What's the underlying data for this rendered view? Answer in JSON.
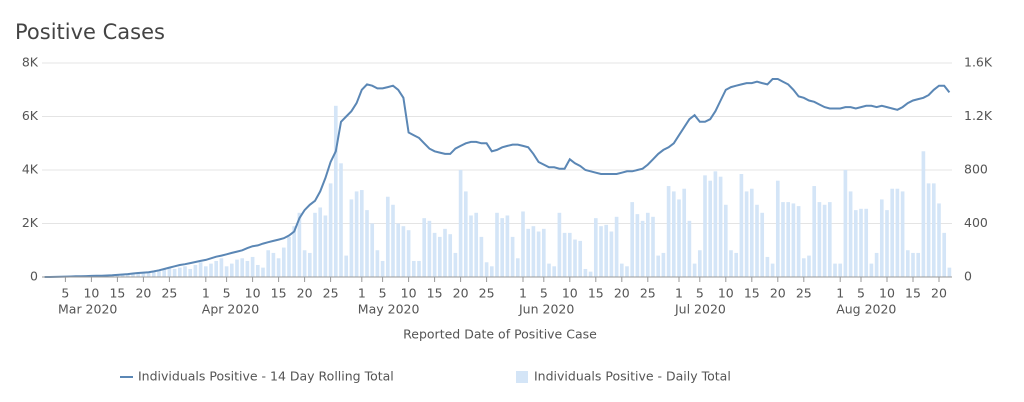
{
  "chart_data": {
    "type": "bar-line",
    "title": "Positive Cases",
    "xlabel": "Reported Date of Positive Case",
    "x": [
      "2020-03-01",
      "2020-03-02",
      "2020-03-03",
      "2020-03-04",
      "2020-03-05",
      "2020-03-06",
      "2020-03-07",
      "2020-03-08",
      "2020-03-09",
      "2020-03-10",
      "2020-03-11",
      "2020-03-12",
      "2020-03-13",
      "2020-03-14",
      "2020-03-15",
      "2020-03-16",
      "2020-03-17",
      "2020-03-18",
      "2020-03-19",
      "2020-03-20",
      "2020-03-21",
      "2020-03-22",
      "2020-03-23",
      "2020-03-24",
      "2020-03-25",
      "2020-03-26",
      "2020-03-27",
      "2020-03-28",
      "2020-03-29",
      "2020-03-30",
      "2020-03-31",
      "2020-04-01",
      "2020-04-02",
      "2020-04-03",
      "2020-04-04",
      "2020-04-05",
      "2020-04-06",
      "2020-04-07",
      "2020-04-08",
      "2020-04-09",
      "2020-04-10",
      "2020-04-11",
      "2020-04-12",
      "2020-04-13",
      "2020-04-14",
      "2020-04-15",
      "2020-04-16",
      "2020-04-17",
      "2020-04-18",
      "2020-04-19",
      "2020-04-20",
      "2020-04-21",
      "2020-04-22",
      "2020-04-23",
      "2020-04-24",
      "2020-04-25",
      "2020-04-26",
      "2020-04-27",
      "2020-04-28",
      "2020-04-29",
      "2020-04-30",
      "2020-05-01",
      "2020-05-02",
      "2020-05-03",
      "2020-05-04",
      "2020-05-05",
      "2020-05-06",
      "2020-05-07",
      "2020-05-08",
      "2020-05-09",
      "2020-05-10",
      "2020-05-11",
      "2020-05-12",
      "2020-05-13",
      "2020-05-14",
      "2020-05-15",
      "2020-05-16",
      "2020-05-17",
      "2020-05-18",
      "2020-05-19",
      "2020-05-20",
      "2020-05-21",
      "2020-05-22",
      "2020-05-23",
      "2020-05-24",
      "2020-05-25",
      "2020-05-26",
      "2020-05-27",
      "2020-05-28",
      "2020-05-29",
      "2020-05-30",
      "2020-05-31",
      "2020-06-01",
      "2020-06-02",
      "2020-06-03",
      "2020-06-04",
      "2020-06-05",
      "2020-06-06",
      "2020-06-07",
      "2020-06-08",
      "2020-06-09",
      "2020-06-10",
      "2020-06-11",
      "2020-06-12",
      "2020-06-13",
      "2020-06-14",
      "2020-06-15",
      "2020-06-16",
      "2020-06-17",
      "2020-06-18",
      "2020-06-19",
      "2020-06-20",
      "2020-06-21",
      "2020-06-22",
      "2020-06-23",
      "2020-06-24",
      "2020-06-25",
      "2020-06-26",
      "2020-06-27",
      "2020-06-28",
      "2020-06-29",
      "2020-06-30",
      "2020-07-01",
      "2020-07-02",
      "2020-07-03",
      "2020-07-04",
      "2020-07-05",
      "2020-07-06",
      "2020-07-07",
      "2020-07-08",
      "2020-07-09",
      "2020-07-10",
      "2020-07-11",
      "2020-07-12",
      "2020-07-13",
      "2020-07-14",
      "2020-07-15",
      "2020-07-16",
      "2020-07-17",
      "2020-07-18",
      "2020-07-19",
      "2020-07-20",
      "2020-07-21",
      "2020-07-22",
      "2020-07-23",
      "2020-07-24",
      "2020-07-25",
      "2020-07-26",
      "2020-07-27",
      "2020-07-28",
      "2020-07-29",
      "2020-07-30",
      "2020-07-31",
      "2020-08-01",
      "2020-08-02",
      "2020-08-03",
      "2020-08-04",
      "2020-08-05",
      "2020-08-06",
      "2020-08-07",
      "2020-08-08",
      "2020-08-09",
      "2020-08-10",
      "2020-08-11",
      "2020-08-12",
      "2020-08-13",
      "2020-08-14",
      "2020-08-15",
      "2020-08-16",
      "2020-08-17",
      "2020-08-18",
      "2020-08-19",
      "2020-08-20",
      "2020-08-21",
      "2020-08-22"
    ],
    "series": [
      {
        "name": "Individuals Positive - 14 Day Rolling Total",
        "type": "line",
        "color": "#5b87b5",
        "axis": "y",
        "values": [
          0,
          0,
          5,
          10,
          15,
          20,
          25,
          30,
          35,
          40,
          45,
          50,
          55,
          65,
          80,
          95,
          110,
          130,
          150,
          165,
          180,
          210,
          250,
          300,
          350,
          400,
          450,
          480,
          520,
          560,
          600,
          640,
          700,
          760,
          800,
          850,
          900,
          950,
          1000,
          1080,
          1150,
          1180,
          1250,
          1300,
          1350,
          1400,
          1450,
          1550,
          1700,
          2200,
          2500,
          2700,
          2850,
          3200,
          3700,
          4300,
          4700,
          5800,
          6000,
          6200,
          6500,
          7000,
          7200,
          7150,
          7050,
          7050,
          7100,
          7150,
          7000,
          6700,
          5400,
          5300,
          5200,
          5000,
          4800,
          4700,
          4650,
          4600,
          4600,
          4800,
          4900,
          5000,
          5050,
          5050,
          5000,
          5000,
          4700,
          4750,
          4850,
          4900,
          4950,
          4950,
          4900,
          4850,
          4600,
          4300,
          4200,
          4100,
          4100,
          4050,
          4050,
          4400,
          4250,
          4150,
          4000,
          3950,
          3900,
          3850,
          3850,
          3850,
          3850,
          3900,
          3950,
          3950,
          4000,
          4050,
          4200,
          4400,
          4600,
          4750,
          4850,
          5000,
          5300,
          5600,
          5900,
          6050,
          5800,
          5800,
          5900,
          6200,
          6600,
          7000,
          7100,
          7150,
          7200,
          7250,
          7250,
          7300,
          7250,
          7200,
          7400,
          7400,
          7300,
          7200,
          7000,
          6750,
          6700,
          6600,
          6550,
          6450,
          6350,
          6300,
          6300,
          6300,
          6350,
          6350,
          6300,
          6350,
          6400,
          6400,
          6350,
          6400,
          6350,
          6300,
          6250,
          6350,
          6500,
          6600,
          6650,
          6700,
          6800,
          7000,
          7150,
          7150,
          6900
        ]
      },
      {
        "name": "Individuals Positive - Daily Total",
        "type": "bar",
        "color": "#d4e5f7",
        "axis": "y2",
        "values": [
          0,
          0,
          5,
          5,
          5,
          5,
          10,
          5,
          5,
          10,
          10,
          10,
          15,
          10,
          15,
          20,
          25,
          30,
          35,
          30,
          30,
          40,
          50,
          60,
          70,
          60,
          70,
          80,
          60,
          90,
          110,
          80,
          100,
          120,
          140,
          80,
          100,
          130,
          140,
          120,
          150,
          90,
          70,
          200,
          180,
          140,
          220,
          300,
          380,
          480,
          200,
          180,
          480,
          520,
          460,
          700,
          1280,
          850,
          160,
          580,
          640,
          650,
          500,
          400,
          200,
          120,
          600,
          540,
          400,
          380,
          350,
          120,
          120,
          440,
          420,
          330,
          300,
          360,
          320,
          180,
          800,
          640,
          460,
          480,
          300,
          110,
          80,
          480,
          440,
          460,
          300,
          140,
          490,
          360,
          380,
          340,
          360,
          100,
          80,
          480,
          330,
          330,
          280,
          270,
          60,
          40,
          440,
          380,
          390,
          340,
          450,
          100,
          80,
          560,
          470,
          420,
          480,
          450,
          160,
          180,
          680,
          640,
          580,
          660,
          420,
          100,
          200,
          760,
          720,
          790,
          750,
          540,
          200,
          180,
          770,
          640,
          660,
          540,
          480,
          150,
          100,
          720,
          560,
          560,
          550,
          530,
          140,
          160,
          680,
          560,
          540,
          560,
          100,
          100,
          800,
          640,
          500,
          510,
          510,
          100,
          180,
          580,
          500,
          660,
          660,
          640,
          200,
          180,
          180,
          940,
          700,
          700,
          550,
          330,
          70
        ]
      }
    ],
    "ylim": [
      0,
      8000
    ],
    "yticks": [
      0,
      {
        "value": 2000,
        "label": "2K"
      },
      {
        "value": 4000,
        "label": "4K"
      },
      {
        "value": 6000,
        "label": "6K"
      },
      {
        "value": 8000,
        "label": "8K"
      }
    ],
    "y2lim": [
      0,
      1600
    ],
    "y2ticks": [
      0,
      400,
      800,
      {
        "value": 1200,
        "label": "1.2K"
      },
      {
        "value": 1600,
        "label": "1.6K"
      }
    ],
    "xticks": [
      {
        "value": "2020-03-05",
        "label": "5"
      },
      {
        "value": "2020-03-10",
        "label": "10"
      },
      {
        "value": "2020-03-15",
        "label": "15"
      },
      {
        "value": "2020-03-20",
        "label": "20"
      },
      {
        "value": "2020-03-25",
        "label": "25"
      },
      {
        "value": "2020-04-01",
        "label": "1"
      },
      {
        "value": "2020-04-05",
        "label": "5"
      },
      {
        "value": "2020-04-10",
        "label": "10"
      },
      {
        "value": "2020-04-15",
        "label": "15"
      },
      {
        "value": "2020-04-20",
        "label": "20"
      },
      {
        "value": "2020-04-25",
        "label": "25"
      },
      {
        "value": "2020-05-01",
        "label": "1"
      },
      {
        "value": "2020-05-05",
        "label": "5"
      },
      {
        "value": "2020-05-10",
        "label": "10"
      },
      {
        "value": "2020-05-15",
        "label": "15"
      },
      {
        "value": "2020-05-20",
        "label": "20"
      },
      {
        "value": "2020-05-25",
        "label": "25"
      },
      {
        "value": "2020-06-01",
        "label": "1"
      },
      {
        "value": "2020-06-05",
        "label": "5"
      },
      {
        "value": "2020-06-10",
        "label": "10"
      },
      {
        "value": "2020-06-15",
        "label": "15"
      },
      {
        "value": "2020-06-20",
        "label": "20"
      },
      {
        "value": "2020-06-25",
        "label": "25"
      },
      {
        "value": "2020-07-01",
        "label": "1"
      },
      {
        "value": "2020-07-05",
        "label": "5"
      },
      {
        "value": "2020-07-10",
        "label": "10"
      },
      {
        "value": "2020-07-15",
        "label": "15"
      },
      {
        "value": "2020-07-20",
        "label": "20"
      },
      {
        "value": "2020-07-25",
        "label": "25"
      },
      {
        "value": "2020-08-01",
        "label": "1"
      },
      {
        "value": "2020-08-05",
        "label": "5"
      },
      {
        "value": "2020-08-10",
        "label": "10"
      },
      {
        "value": "2020-08-15",
        "label": "15"
      },
      {
        "value": "2020-08-20",
        "label": "20"
      }
    ],
    "month_labels": [
      {
        "value": "2020-03-01",
        "label": "Mar 2020"
      },
      {
        "value": "2020-04-01",
        "label": "Apr 2020"
      },
      {
        "value": "2020-05-01",
        "label": "May 2020"
      },
      {
        "value": "2020-06-01",
        "label": "Jun 2020"
      },
      {
        "value": "2020-07-01",
        "label": "Jul 2020"
      },
      {
        "value": "2020-08-01",
        "label": "Aug 2020"
      }
    ],
    "grid": true,
    "legend": "bottom"
  }
}
